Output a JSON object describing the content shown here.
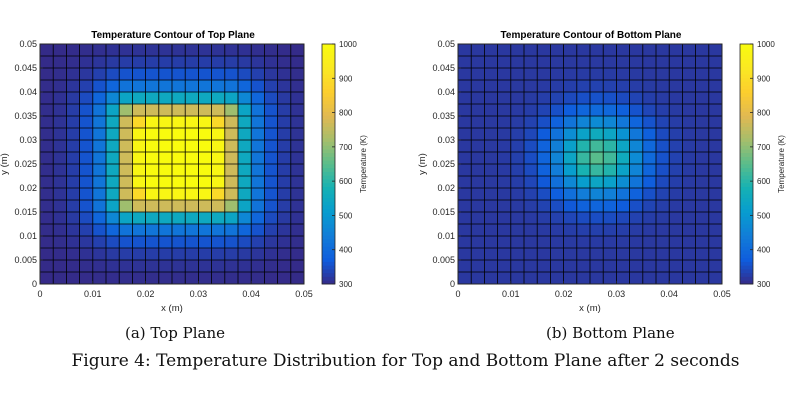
{
  "figure_caption": "Figure 4: Temperature Distribution for Top and Bottom Plane after 2 seconds",
  "subcaptions": [
    "(a) Top Plane",
    "(b) Bottom Plane"
  ],
  "chart_data": [
    {
      "type": "heatmap",
      "title": "Temperature Contour of Top Plane",
      "xlabel": "x (m)",
      "ylabel": "y (m)",
      "xlim": [
        0,
        0.05
      ],
      "ylim": [
        0,
        0.05
      ],
      "xticks": [
        "0",
        "0.01",
        "0.02",
        "0.03",
        "0.04",
        "0.05"
      ],
      "yticks": [
        "0",
        "0.005",
        "0.01",
        "0.015",
        "0.02",
        "0.025",
        "0.03",
        "0.035",
        "0.04",
        "0.045",
        "0.05"
      ],
      "grid_size": [
        20,
        20
      ],
      "hot_center": [
        0.0275,
        0.0265
      ],
      "hot_region": {
        "x": [
          0.0175,
          0.035
        ],
        "y": [
          0.0175,
          0.035
        ]
      },
      "peak_temperature": 1000,
      "ambient_temperature": 300,
      "colorbar": {
        "label": "Temperature (K)",
        "min": 300,
        "max": 1000,
        "ticks": [
          "300",
          "400",
          "500",
          "600",
          "700",
          "800",
          "900",
          "1000"
        ]
      },
      "colormap": "parula"
    },
    {
      "type": "heatmap",
      "title": "Temperature Contour of Bottom Plane",
      "xlabel": "x (m)",
      "ylabel": "y (m)",
      "xlim": [
        0,
        0.05
      ],
      "ylim": [
        0,
        0.05
      ],
      "xticks": [
        "0",
        "0.01",
        "0.02",
        "0.03",
        "0.04",
        "0.05"
      ],
      "yticks": [
        "0",
        "0.005",
        "0.01",
        "0.015",
        "0.02",
        "0.025",
        "0.03",
        "0.035",
        "0.04",
        "0.045",
        "0.05"
      ],
      "grid_size": [
        20,
        20
      ],
      "hot_center": [
        0.0265,
        0.0265
      ],
      "peak_temperature": 650,
      "ambient_temperature": 320,
      "colorbar": {
        "label": "Temperature (K)",
        "min": 300,
        "max": 1000,
        "ticks": [
          "300",
          "400",
          "500",
          "600",
          "700",
          "800",
          "900",
          "1000"
        ]
      },
      "colormap": "parula"
    }
  ]
}
